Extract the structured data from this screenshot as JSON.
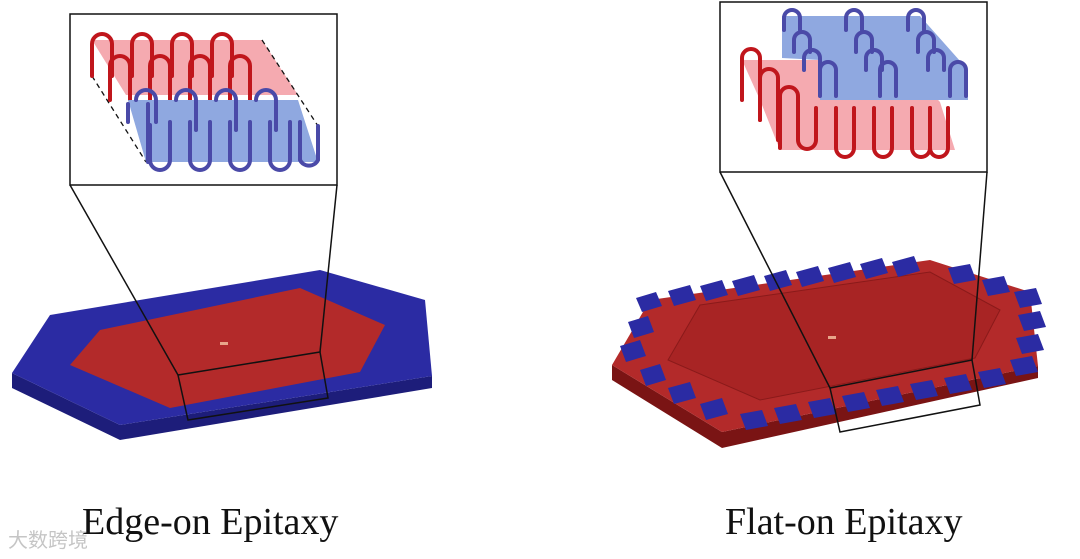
{
  "captions": {
    "left": "Edge-on Epitaxy",
    "right": "Flat-on Epitaxy"
  },
  "watermark": "大数跨境",
  "colors": {
    "substrate_blue": "#2b2ba3",
    "substrate_blue_dark": "#1d1d7a",
    "crystal_red": "#b32a2a",
    "crystal_red_dark": "#7a1414",
    "red_layer": "#f5aab0",
    "blue_layer": "#8fa8e0",
    "red_chain": "#c0161c",
    "blue_chain": "#4a4aa8",
    "frame": "#111111"
  }
}
